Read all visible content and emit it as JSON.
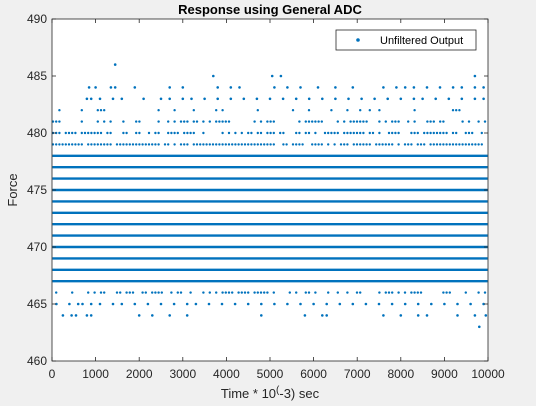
{
  "chart_data": {
    "type": "scatter",
    "title": "Response using General ADC",
    "xlabel_parts": [
      "Time * 10",
      "(",
      "-3) sec"
    ],
    "ylabel": "Force",
    "xlim": [
      0,
      10000
    ],
    "ylim": [
      460,
      490
    ],
    "xticks": [
      0,
      1000,
      2000,
      3000,
      4000,
      5000,
      6000,
      7000,
      8000,
      9000,
      10000
    ],
    "yticks": [
      460,
      465,
      470,
      475,
      480,
      485,
      490
    ],
    "grid": false,
    "legend_position": "top-right",
    "series": [
      {
        "name": "Unfiltered Output",
        "color": "#0072bd",
        "marker": "dot",
        "dense_levels": [
          {
            "y": 466,
            "density": 0.5
          },
          {
            "y": 467,
            "density": 1.0
          },
          {
            "y": 468,
            "density": 1.0
          },
          {
            "y": 469,
            "density": 1.0
          },
          {
            "y": 470,
            "density": 1.0
          },
          {
            "y": 471,
            "density": 1.0
          },
          {
            "y": 472,
            "density": 1.0
          },
          {
            "y": 473,
            "density": 1.0
          },
          {
            "y": 474,
            "density": 1.0
          },
          {
            "y": 475,
            "density": 1.0
          },
          {
            "y": 476,
            "density": 1.0
          },
          {
            "y": 477,
            "density": 1.0
          },
          {
            "y": 478,
            "density": 1.0
          },
          {
            "y": 479,
            "density": 0.85
          },
          {
            "y": 480,
            "density": 0.65
          },
          {
            "y": 481,
            "density": 0.45
          },
          {
            "y": 482,
            "density": 0.22
          }
        ],
        "sparse_points": [
          {
            "y": 465,
            "x": [
              100,
              400,
              600,
              700,
              900,
              1100,
              1400,
              1600,
              1900,
              2200,
              2500,
              2800,
              3100,
              3300,
              3600,
              3900,
              4200,
              4500,
              4800,
              5100,
              5400,
              5700,
              6000,
              6300,
              6600,
              6900,
              7200,
              7500,
              7800,
              8100,
              8400,
              8700,
              9000,
              9300,
              9600,
              9900
            ]
          },
          {
            "y": 464,
            "x": [
              250,
              450,
              550,
              800,
              900,
              2000,
              2300,
              2700,
              3100,
              4800,
              5800,
              6200,
              6300,
              7600,
              8000,
              8400,
              8600,
              9300,
              9700,
              9950
            ]
          },
          {
            "y": 463,
            "x": [
              9800
            ]
          },
          {
            "y": 483,
            "x": [
              800,
              900,
              1100,
              1400,
              1600,
              2100,
              2500,
              2700,
              3000,
              3200,
              3500,
              3800,
              4100,
              4400,
              4700,
              5000,
              5300,
              5600,
              5900,
              6200,
              6500,
              6800,
              7100,
              7400,
              7700,
              8000,
              8300,
              8500,
              8800,
              9100,
              9400,
              9700,
              9900
            ]
          },
          {
            "y": 484,
            "x": [
              850,
              1000,
              1350,
              1450,
              1900,
              2700,
              3000,
              3800,
              4100,
              4300,
              5100,
              5400,
              5700,
              6100,
              6500,
              6900,
              7600,
              7900,
              8100,
              8300,
              8600,
              8900,
              9200,
              9400,
              9700,
              9900
            ]
          },
          {
            "y": 485,
            "x": [
              3700,
              5050,
              5250,
              9700
            ]
          },
          {
            "y": 486,
            "x": [
              1450
            ]
          }
        ]
      }
    ]
  }
}
